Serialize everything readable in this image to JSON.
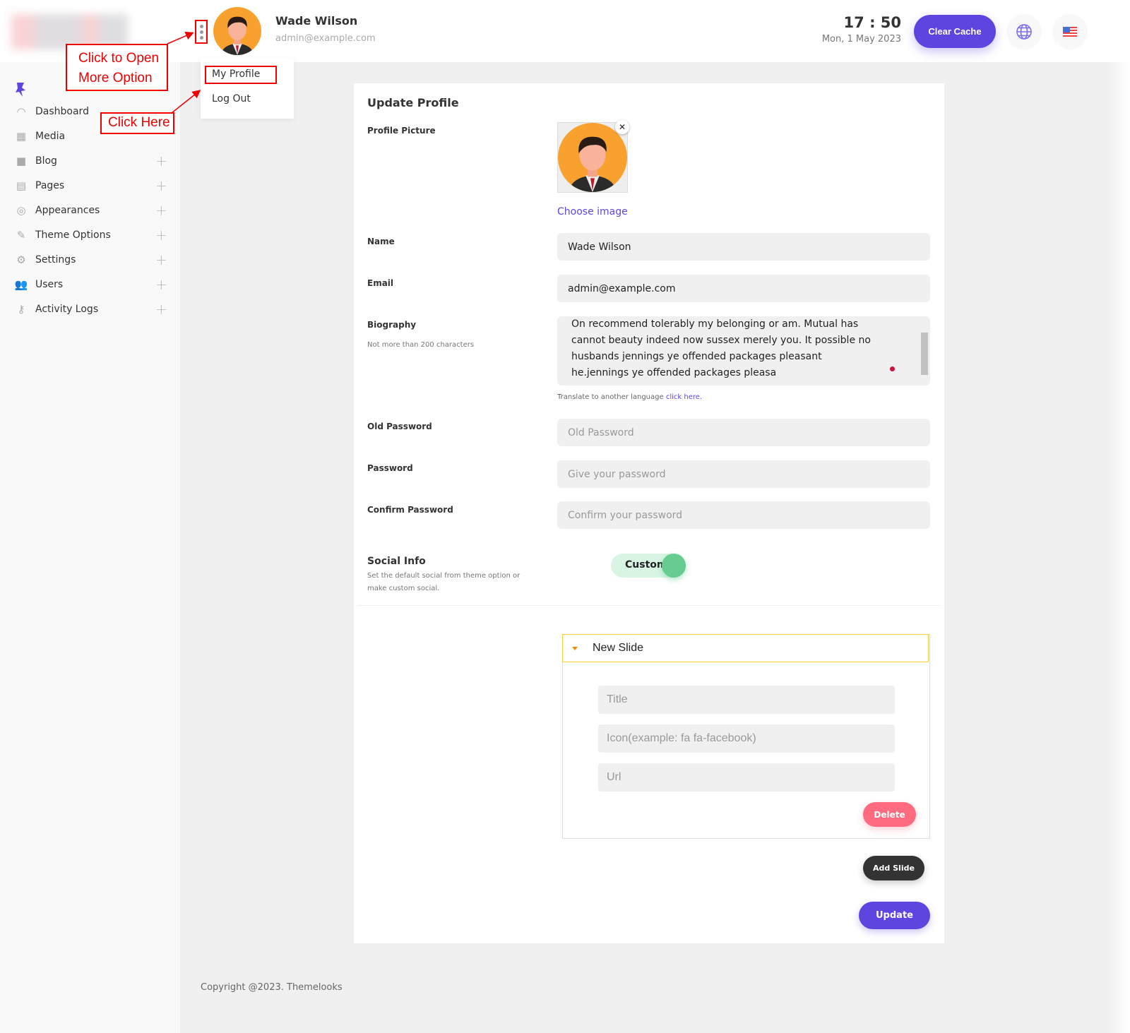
{
  "header": {
    "user_name": "Wade Wilson",
    "user_email": "admin@example.com",
    "time": "17 : 50",
    "date": "Mon, 1 May 2023",
    "clear_cache": "Clear Cache",
    "globe_icon": "globe-icon",
    "flag_icon": "us-flag-icon"
  },
  "user_menu": {
    "items": [
      {
        "label": "My Profile"
      },
      {
        "label": "Log Out"
      }
    ]
  },
  "annotations": {
    "open_more": "Click to Open More Option",
    "click_here": "Click Here",
    "color": "#ee0000"
  },
  "sidebar": {
    "items": [
      {
        "label": "Dashboard",
        "icon": "gauge-icon",
        "expandable": false
      },
      {
        "label": "Media",
        "icon": "media-icon",
        "expandable": false
      },
      {
        "label": "Blog",
        "icon": "blogger-icon",
        "expandable": true
      },
      {
        "label": "Pages",
        "icon": "page-icon",
        "expandable": true
      },
      {
        "label": "Appearances",
        "icon": "appearance-icon",
        "expandable": true
      },
      {
        "label": "Theme Options",
        "icon": "brush-icon",
        "expandable": true
      },
      {
        "label": "Settings",
        "icon": "gears-icon",
        "expandable": true
      },
      {
        "label": "Users",
        "icon": "users-icon",
        "expandable": true
      },
      {
        "label": "Activity Logs",
        "icon": "key-icon",
        "expandable": true
      }
    ]
  },
  "form": {
    "title": "Update Profile",
    "profile_picture_label": "Profile Picture",
    "choose_image": "Choose image",
    "name_label": "Name",
    "name_value": "Wade Wilson",
    "email_label": "Email",
    "email_value": "admin@example.com",
    "bio_label": "Biography",
    "bio_hint": "Not more than 200 characters",
    "bio_value": "On recommend tolerably my belonging or am. Mutual has cannot beauty indeed now sussex merely you. It possible no husbands jennings ye offended packages pleasant he.jennings ye offended packages pleasa",
    "translate_text": "Translate to another language",
    "translate_link": "click here.",
    "old_password_label": "Old Password",
    "old_password_placeholder": "Old Password",
    "password_label": "Password",
    "password_placeholder": "Give your password",
    "confirm_label": "Confirm Password",
    "confirm_placeholder": "Confirm your password",
    "social_label": "Social Info",
    "social_hint": "Set the default social from theme option or make custom social.",
    "social_toggle": "Custom",
    "slide": {
      "title": "New Slide",
      "title_placeholder": "Title",
      "icon_placeholder": "Icon(example: fa fa-facebook)",
      "url_placeholder": "Url",
      "delete": "Delete"
    },
    "add_slide": "Add Slide",
    "update": "Update"
  },
  "footer": {
    "copyright": "Copyright @2023. Themelooks"
  },
  "colors": {
    "accent": "#5f45e0",
    "delete": "#ff6b81",
    "dark": "#333333",
    "toggle": "#66cc8f"
  }
}
